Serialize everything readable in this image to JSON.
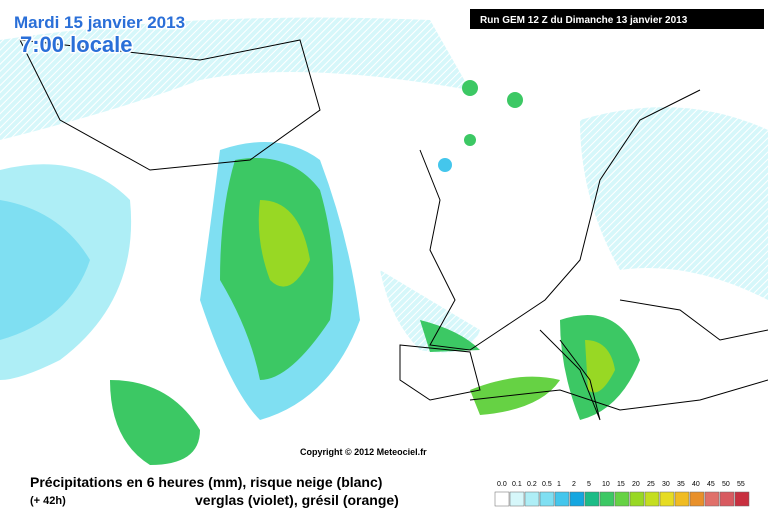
{
  "header": {
    "date": "Mardi 15 janvier 2013",
    "time": "7:00 locale",
    "run": "Run GEM 12 Z du Dimanche 13 janvier 2013"
  },
  "copyright": "Copyright © 2012 Meteociel.fr",
  "caption": {
    "line1": "Précipitations en 6 heures (mm), risque neige (blanc)",
    "offset": "(+ 42h)",
    "line2": "verglas (violet), grésil (orange)"
  },
  "legend": {
    "steps": [
      {
        "label": "0.0",
        "color": "#ffffff"
      },
      {
        "label": "0.1",
        "color": "#d6f7fa"
      },
      {
        "label": "0.2",
        "color": "#aeeef6"
      },
      {
        "label": "0.5",
        "color": "#7fdff2"
      },
      {
        "label": "1",
        "color": "#44c6ec"
      },
      {
        "label": "2",
        "color": "#14a6e0"
      },
      {
        "label": "5",
        "color": "#1cbc86"
      },
      {
        "label": "10",
        "color": "#3cc864"
      },
      {
        "label": "15",
        "color": "#66d244"
      },
      {
        "label": "20",
        "color": "#98d824"
      },
      {
        "label": "25",
        "color": "#c4de20"
      },
      {
        "label": "30",
        "color": "#e6dc22"
      },
      {
        "label": "35",
        "color": "#f0bc22"
      },
      {
        "label": "40",
        "color": "#e8902a"
      },
      {
        "label": "45",
        "color": "#e0706a"
      },
      {
        "label": "50",
        "color": "#d85a60"
      },
      {
        "label": "55",
        "color": "#c83040"
      }
    ]
  }
}
